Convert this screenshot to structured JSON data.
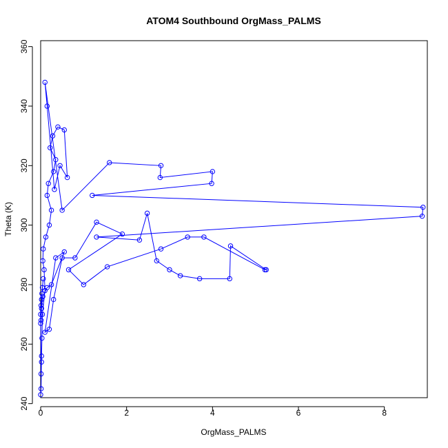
{
  "chart_data": {
    "type": "line",
    "title": "ATOM4 Southbound OrgMass_PALMS",
    "xlabel": "OrgMass_PALMS",
    "ylabel": "Theta (K)",
    "xlim": [
      0,
      9
    ],
    "ylim": [
      242,
      362
    ],
    "x_ticks": [
      0,
      2,
      4,
      6,
      8
    ],
    "y_ticks": [
      240,
      260,
      280,
      300,
      320,
      340,
      360
    ],
    "x_tick_labels": [
      "0",
      "2",
      "4",
      "6",
      "8"
    ],
    "y_tick_labels": [
      "240",
      "260",
      "280",
      "300",
      "320",
      "340",
      "360"
    ],
    "series": [
      {
        "color": "#0000ff",
        "x": [
          0,
          0.01,
          0.02,
          0.03,
          0.04,
          0.1,
          0.08,
          0.05,
          0.06,
          0.12,
          0.2,
          0.25,
          0.15,
          0.18,
          0.3,
          0.35,
          0.22,
          0.28,
          0.4,
          0.55,
          0.62,
          0.45,
          0.32,
          0.15,
          0.1,
          0.5,
          1.6,
          2.8,
          2.78,
          4.0,
          3.98,
          1.2,
          8.9,
          8.88,
          1.3,
          2.3,
          2.48,
          2.7,
          3.0,
          3.25,
          3.7,
          4.4,
          4.42,
          5.25,
          5.22,
          3.8,
          3.42,
          2.8,
          1.55,
          1.0,
          0.65,
          1.9,
          1.3,
          0.8,
          0.5,
          0.3,
          0.2,
          0.1,
          0.35,
          0.55,
          0.25,
          0.15,
          0.05,
          0.02,
          0.01,
          0,
          0.03,
          0.06,
          0.04,
          0.02,
          0.01,
          0.0,
          0.01,
          0.02
        ],
        "y": [
          243,
          245,
          256,
          262,
          270,
          278,
          285,
          288,
          292,
          296,
          300,
          305,
          310,
          314,
          318,
          322,
          326,
          330,
          333,
          332,
          316,
          320,
          312,
          340,
          348,
          305,
          321,
          320,
          316,
          318,
          314,
          310,
          306,
          303,
          296,
          295,
          304,
          288,
          285,
          283,
          282,
          282,
          293,
          285,
          285,
          296,
          296,
          292,
          286,
          280,
          285,
          297,
          301,
          289,
          289,
          275,
          265,
          264,
          289,
          291,
          280,
          279,
          276,
          272,
          268,
          267,
          277,
          282,
          279,
          275,
          273,
          270,
          250,
          254
        ]
      }
    ]
  }
}
